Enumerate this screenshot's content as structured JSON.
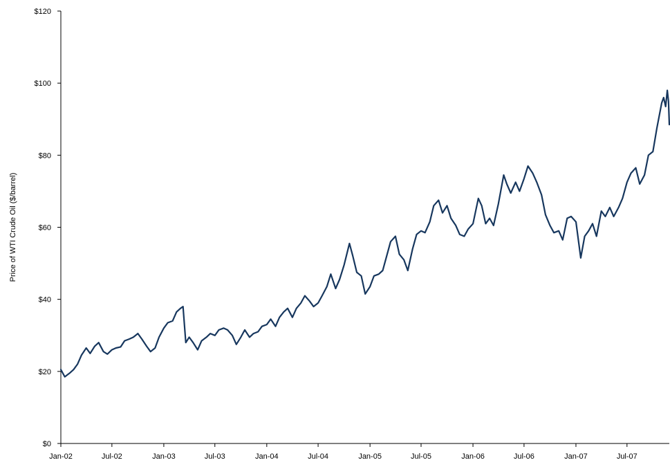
{
  "chart_data": {
    "type": "line",
    "title": "",
    "xlabel": "",
    "ylabel": "Price of WTI Crude Oil ($/barrel)",
    "ylim": [
      0,
      120
    ],
    "xlim": [
      "2002-01-01",
      "2007-11-28"
    ],
    "grid": false,
    "legend": "none",
    "y_ticks": [
      {
        "value": 0,
        "label": "$0"
      },
      {
        "value": 20,
        "label": "$20"
      },
      {
        "value": 40,
        "label": "$40"
      },
      {
        "value": 60,
        "label": "$60"
      },
      {
        "value": 80,
        "label": "$80"
      },
      {
        "value": 100,
        "label": "$100"
      },
      {
        "value": 120,
        "label": "$120"
      }
    ],
    "x_ticks": [
      {
        "date": "2002-01-01",
        "label": "Jan-02"
      },
      {
        "date": "2002-07-01",
        "label": "Jul-02"
      },
      {
        "date": "2003-01-01",
        "label": "Jan-03"
      },
      {
        "date": "2003-07-01",
        "label": "Jul-03"
      },
      {
        "date": "2004-01-01",
        "label": "Jan-04"
      },
      {
        "date": "2004-07-01",
        "label": "Jul-04"
      },
      {
        "date": "2005-01-01",
        "label": "Jan-05"
      },
      {
        "date": "2005-07-01",
        "label": "Jul-05"
      },
      {
        "date": "2006-01-01",
        "label": "Jan-06"
      },
      {
        "date": "2006-07-01",
        "label": "Jul-06"
      },
      {
        "date": "2007-01-01",
        "label": "Jan-07"
      },
      {
        "date": "2007-07-01",
        "label": "Jul-07"
      }
    ],
    "series": [
      {
        "color": "#17375e",
        "points": [
          [
            "2002-01-01",
            20.5
          ],
          [
            "2002-01-15",
            18.5
          ],
          [
            "2002-02-01",
            19.5
          ],
          [
            "2002-02-15",
            20.5
          ],
          [
            "2002-03-01",
            22.0
          ],
          [
            "2002-03-15",
            24.5
          ],
          [
            "2002-04-01",
            26.5
          ],
          [
            "2002-04-15",
            25.0
          ],
          [
            "2002-05-01",
            27.0
          ],
          [
            "2002-05-15",
            28.0
          ],
          [
            "2002-06-01",
            25.5
          ],
          [
            "2002-06-15",
            24.8
          ],
          [
            "2002-07-01",
            26.0
          ],
          [
            "2002-07-15",
            26.5
          ],
          [
            "2002-08-01",
            26.8
          ],
          [
            "2002-08-15",
            28.5
          ],
          [
            "2002-09-01",
            29.0
          ],
          [
            "2002-09-15",
            29.5
          ],
          [
            "2002-10-01",
            30.5
          ],
          [
            "2002-10-15",
            29.0
          ],
          [
            "2002-11-01",
            27.0
          ],
          [
            "2002-11-15",
            25.5
          ],
          [
            "2002-12-01",
            26.5
          ],
          [
            "2002-12-15",
            29.5
          ],
          [
            "2003-01-01",
            32.0
          ],
          [
            "2003-01-15",
            33.5
          ],
          [
            "2003-02-01",
            34.0
          ],
          [
            "2003-02-15",
            36.5
          ],
          [
            "2003-03-01",
            37.5
          ],
          [
            "2003-03-10",
            38.0
          ],
          [
            "2003-03-20",
            28.0
          ],
          [
            "2003-04-01",
            29.5
          ],
          [
            "2003-04-15",
            28.0
          ],
          [
            "2003-05-01",
            26.0
          ],
          [
            "2003-05-15",
            28.5
          ],
          [
            "2003-06-01",
            29.5
          ],
          [
            "2003-06-15",
            30.5
          ],
          [
            "2003-07-01",
            30.0
          ],
          [
            "2003-07-15",
            31.5
          ],
          [
            "2003-08-01",
            32.0
          ],
          [
            "2003-08-15",
            31.5
          ],
          [
            "2003-09-01",
            30.0
          ],
          [
            "2003-09-15",
            27.5
          ],
          [
            "2003-10-01",
            29.5
          ],
          [
            "2003-10-15",
            31.5
          ],
          [
            "2003-11-01",
            29.5
          ],
          [
            "2003-11-15",
            30.5
          ],
          [
            "2003-12-01",
            31.0
          ],
          [
            "2003-12-15",
            32.5
          ],
          [
            "2004-01-01",
            33.0
          ],
          [
            "2004-01-15",
            34.5
          ],
          [
            "2004-02-01",
            32.5
          ],
          [
            "2004-02-15",
            35.0
          ],
          [
            "2004-03-01",
            36.5
          ],
          [
            "2004-03-15",
            37.5
          ],
          [
            "2004-04-01",
            35.0
          ],
          [
            "2004-04-15",
            37.5
          ],
          [
            "2004-05-01",
            39.0
          ],
          [
            "2004-05-15",
            41.0
          ],
          [
            "2004-06-01",
            39.5
          ],
          [
            "2004-06-15",
            38.0
          ],
          [
            "2004-07-01",
            39.0
          ],
          [
            "2004-07-15",
            41.0
          ],
          [
            "2004-08-01",
            43.5
          ],
          [
            "2004-08-15",
            47.0
          ],
          [
            "2004-09-01",
            43.0
          ],
          [
            "2004-09-15",
            45.5
          ],
          [
            "2004-10-01",
            49.5
          ],
          [
            "2004-10-20",
            55.5
          ],
          [
            "2004-11-01",
            52.0
          ],
          [
            "2004-11-15",
            47.5
          ],
          [
            "2004-12-01",
            46.5
          ],
          [
            "2004-12-15",
            41.5
          ],
          [
            "2005-01-01",
            43.5
          ],
          [
            "2005-01-15",
            46.5
          ],
          [
            "2005-02-01",
            47.0
          ],
          [
            "2005-02-15",
            48.0
          ],
          [
            "2005-03-01",
            52.0
          ],
          [
            "2005-03-15",
            56.0
          ],
          [
            "2005-04-01",
            57.5
          ],
          [
            "2005-04-15",
            52.5
          ],
          [
            "2005-05-01",
            51.0
          ],
          [
            "2005-05-15",
            48.0
          ],
          [
            "2005-06-01",
            54.0
          ],
          [
            "2005-06-15",
            58.0
          ],
          [
            "2005-07-01",
            59.0
          ],
          [
            "2005-07-15",
            58.5
          ],
          [
            "2005-08-01",
            61.5
          ],
          [
            "2005-08-15",
            66.0
          ],
          [
            "2005-09-01",
            67.5
          ],
          [
            "2005-09-15",
            64.0
          ],
          [
            "2005-10-01",
            66.0
          ],
          [
            "2005-10-15",
            62.5
          ],
          [
            "2005-11-01",
            60.5
          ],
          [
            "2005-11-15",
            58.0
          ],
          [
            "2005-12-01",
            57.5
          ],
          [
            "2005-12-15",
            59.5
          ],
          [
            "2006-01-01",
            61.0
          ],
          [
            "2006-01-20",
            68.0
          ],
          [
            "2006-02-01",
            66.0
          ],
          [
            "2006-02-15",
            61.0
          ],
          [
            "2006-03-01",
            62.5
          ],
          [
            "2006-03-15",
            60.5
          ],
          [
            "2006-04-01",
            66.5
          ],
          [
            "2006-04-20",
            74.5
          ],
          [
            "2006-05-01",
            72.0
          ],
          [
            "2006-05-15",
            69.5
          ],
          [
            "2006-06-01",
            72.5
          ],
          [
            "2006-06-15",
            70.0
          ],
          [
            "2006-07-01",
            73.5
          ],
          [
            "2006-07-15",
            77.0
          ],
          [
            "2006-08-01",
            75.0
          ],
          [
            "2006-08-15",
            72.5
          ],
          [
            "2006-09-01",
            69.0
          ],
          [
            "2006-09-15",
            63.5
          ],
          [
            "2006-10-01",
            60.5
          ],
          [
            "2006-10-15",
            58.5
          ],
          [
            "2006-11-01",
            59.0
          ],
          [
            "2006-11-15",
            56.5
          ],
          [
            "2006-12-01",
            62.5
          ],
          [
            "2006-12-15",
            63.0
          ],
          [
            "2007-01-01",
            61.5
          ],
          [
            "2007-01-18",
            51.5
          ],
          [
            "2007-02-01",
            57.5
          ],
          [
            "2007-02-15",
            59.0
          ],
          [
            "2007-03-01",
            61.0
          ],
          [
            "2007-03-15",
            57.5
          ],
          [
            "2007-04-01",
            64.5
          ],
          [
            "2007-04-15",
            63.0
          ],
          [
            "2007-05-01",
            65.5
          ],
          [
            "2007-05-15",
            63.0
          ],
          [
            "2007-06-01",
            65.5
          ],
          [
            "2007-06-15",
            68.0
          ],
          [
            "2007-07-01",
            72.5
          ],
          [
            "2007-07-15",
            75.0
          ],
          [
            "2007-08-01",
            76.5
          ],
          [
            "2007-08-15",
            72.0
          ],
          [
            "2007-09-01",
            74.5
          ],
          [
            "2007-09-15",
            80.0
          ],
          [
            "2007-10-01",
            81.0
          ],
          [
            "2007-10-15",
            87.5
          ],
          [
            "2007-11-01",
            94.5
          ],
          [
            "2007-11-08",
            96.0
          ],
          [
            "2007-11-15",
            93.5
          ],
          [
            "2007-11-21",
            98.0
          ],
          [
            "2007-11-25",
            95.0
          ],
          [
            "2007-11-28",
            88.5
          ]
        ]
      }
    ]
  }
}
